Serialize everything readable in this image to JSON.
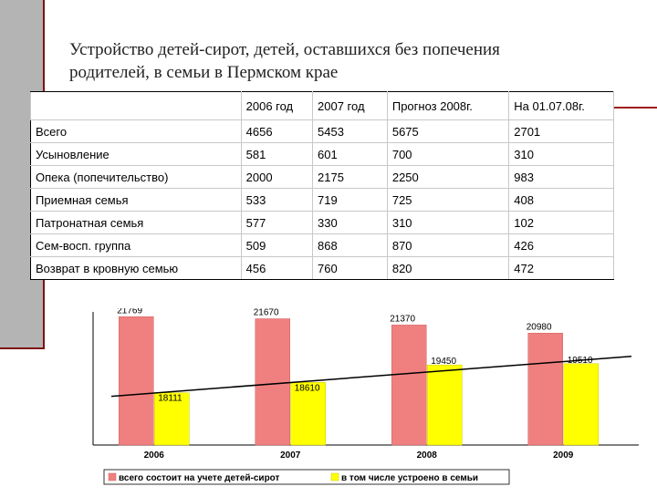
{
  "title": {
    "line1": "Устройство детей-сирот, детей, оставшихся без попечения",
    "line2": "родителей, в семьи в Пермском крае"
  },
  "table": {
    "headers": [
      "",
      "2006 год",
      "2007 год",
      "Прогноз 2008г.",
      "На 01.07.08г."
    ],
    "rows": [
      [
        "Всего",
        "4656",
        "5453",
        "5675",
        "2701"
      ],
      [
        "Усыновление",
        "581",
        "601",
        "700",
        "310"
      ],
      [
        "Опека (попечительство)",
        "2000",
        "2175",
        "2250",
        "983"
      ],
      [
        "Приемная семья",
        "533",
        "719",
        "725",
        "408"
      ],
      [
        "Патронатная семья",
        "577",
        "330",
        "310",
        "102"
      ],
      [
        "Сем-восп. группа",
        "509",
        "868",
        "870",
        "426"
      ],
      [
        "Возврат в кровную семью",
        "456",
        "760",
        "820",
        "472"
      ]
    ]
  },
  "chart_data": {
    "type": "bar",
    "categories": [
      "2006",
      "2007",
      "2008",
      "2009"
    ],
    "series": [
      {
        "name": "всего состоит на учете детей-сирот",
        "values": [
          21769,
          21670,
          21370,
          20980
        ],
        "labels": [
          "21769",
          "21670",
          "21370",
          "20980"
        ],
        "color": "#f08080"
      },
      {
        "name": "в том числе устроено в семьи",
        "values": [
          18111,
          18610,
          19450,
          19510
        ],
        "labels": [
          "18111",
          "18610",
          "19450",
          "19510"
        ],
        "color": "#ffff00"
      }
    ],
    "trend_line": true,
    "ylim": [
      15600,
      22000
    ],
    "legend": "bottom"
  }
}
